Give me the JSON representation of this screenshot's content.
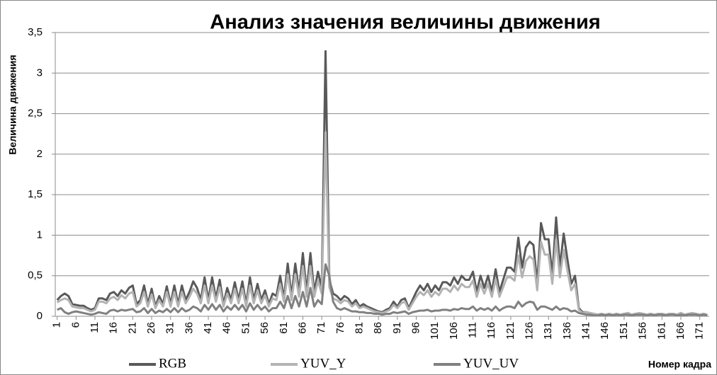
{
  "chart_data": {
    "type": "line",
    "title": "Анализ значения величины движения",
    "y_label": "Величина движения",
    "x_label": "Номер кадра",
    "categories": [
      1,
      null,
      null,
      null,
      null,
      6,
      null,
      null,
      null,
      null,
      11,
      null,
      null,
      null,
      null,
      16,
      null,
      null,
      null,
      null,
      21,
      null,
      null,
      null,
      null,
      26,
      null,
      null,
      null,
      null,
      31,
      null,
      null,
      null,
      null,
      36,
      null,
      null,
      null,
      null,
      41,
      null,
      null,
      null,
      null,
      46,
      null,
      null,
      null,
      null,
      51,
      null,
      null,
      null,
      null,
      56,
      null,
      null,
      null,
      null,
      61,
      null,
      null,
      null,
      null,
      66,
      null,
      null,
      null,
      null,
      71,
      null,
      null,
      null,
      null,
      76,
      null,
      null,
      null,
      null,
      81,
      null,
      null,
      null,
      null,
      86,
      null,
      null,
      null,
      null,
      91,
      null,
      null,
      null,
      null,
      96,
      null,
      null,
      null,
      null,
      101,
      null,
      null,
      null,
      null,
      106,
      null,
      null,
      null,
      null,
      111,
      null,
      null,
      null,
      null,
      116,
      null,
      null,
      null,
      null,
      121,
      null,
      null,
      null,
      null,
      126,
      null,
      null,
      null,
      null,
      131,
      null,
      null,
      null,
      null,
      136,
      null,
      null,
      null,
      null,
      141,
      null,
      null,
      null,
      null,
      146,
      null,
      null,
      null,
      null,
      151,
      null,
      null,
      null,
      null,
      156,
      null,
      null,
      null,
      null,
      161,
      null,
      null,
      null,
      null,
      166,
      null,
      null,
      null,
      null,
      171,
      null,
      null
    ],
    "series": [
      {
        "name": "RGB",
        "color": "#595959",
        "values": [
          0.2,
          0.25,
          0.28,
          0.25,
          0.15,
          0.14,
          0.13,
          0.13,
          0.1,
          0.08,
          0.1,
          0.22,
          0.22,
          0.2,
          0.28,
          0.3,
          0.25,
          0.32,
          0.28,
          0.35,
          0.38,
          0.15,
          0.2,
          0.38,
          0.15,
          0.34,
          0.12,
          0.25,
          0.15,
          0.37,
          0.15,
          0.38,
          0.15,
          0.38,
          0.2,
          0.3,
          0.43,
          0.35,
          0.2,
          0.48,
          0.2,
          0.48,
          0.22,
          0.45,
          0.15,
          0.35,
          0.2,
          0.42,
          0.2,
          0.43,
          0.15,
          0.48,
          0.2,
          0.4,
          0.2,
          0.32,
          0.15,
          0.28,
          0.25,
          0.5,
          0.22,
          0.65,
          0.25,
          0.65,
          0.3,
          0.78,
          0.3,
          0.78,
          0.3,
          0.55,
          0.35,
          3.27,
          0.45,
          0.28,
          0.25,
          0.2,
          0.25,
          0.22,
          0.15,
          0.2,
          0.12,
          0.15,
          0.12,
          0.1,
          0.08,
          0.06,
          0.05,
          0.08,
          0.1,
          0.18,
          0.12,
          0.2,
          0.22,
          0.1,
          0.2,
          0.3,
          0.38,
          0.32,
          0.4,
          0.3,
          0.38,
          0.32,
          0.42,
          0.42,
          0.38,
          0.48,
          0.4,
          0.5,
          0.45,
          0.45,
          0.55,
          0.3,
          0.5,
          0.35,
          0.5,
          0.3,
          0.58,
          0.3,
          0.45,
          0.6,
          0.6,
          0.55,
          0.97,
          0.6,
          0.85,
          0.92,
          0.88,
          0.4,
          1.15,
          0.95,
          0.95,
          0.5,
          1.22,
          0.6,
          1.02,
          0.7,
          0.4,
          0.5,
          0.1,
          0.05,
          0.05,
          0.04,
          0.03,
          0.02,
          0.03,
          0.02,
          0.03,
          0.02,
          0.03,
          0.02,
          0.03,
          0.04,
          0.02,
          0.03,
          0.04,
          0.03,
          0.02,
          0.03,
          0.02,
          0.03,
          0.03,
          0.02,
          0.03,
          0.03,
          0.02,
          0.04,
          0.02,
          0.03,
          0.04,
          0.03,
          0.02,
          0.03,
          0.02
        ]
      },
      {
        "name": "YUV_Y",
        "color": "#b3b3b3",
        "values": [
          0.17,
          0.2,
          0.22,
          0.2,
          0.12,
          0.11,
          0.1,
          0.1,
          0.08,
          0.06,
          0.08,
          0.18,
          0.18,
          0.16,
          0.22,
          0.24,
          0.2,
          0.26,
          0.22,
          0.28,
          0.3,
          0.12,
          0.16,
          0.3,
          0.12,
          0.27,
          0.1,
          0.2,
          0.12,
          0.3,
          0.12,
          0.3,
          0.12,
          0.3,
          0.16,
          0.24,
          0.34,
          0.28,
          0.16,
          0.38,
          0.16,
          0.38,
          0.18,
          0.36,
          0.12,
          0.28,
          0.16,
          0.34,
          0.16,
          0.34,
          0.12,
          0.38,
          0.16,
          0.32,
          0.16,
          0.26,
          0.12,
          0.22,
          0.2,
          0.4,
          0.18,
          0.52,
          0.2,
          0.52,
          0.24,
          0.62,
          0.24,
          0.62,
          0.24,
          0.44,
          0.28,
          2.27,
          0.36,
          0.22,
          0.2,
          0.16,
          0.2,
          0.18,
          0.12,
          0.16,
          0.1,
          0.12,
          0.1,
          0.08,
          0.06,
          0.05,
          0.04,
          0.06,
          0.08,
          0.14,
          0.1,
          0.16,
          0.18,
          0.08,
          0.16,
          0.24,
          0.3,
          0.26,
          0.32,
          0.24,
          0.3,
          0.26,
          0.34,
          0.34,
          0.3,
          0.38,
          0.32,
          0.4,
          0.36,
          0.36,
          0.44,
          0.24,
          0.4,
          0.28,
          0.4,
          0.24,
          0.46,
          0.24,
          0.36,
          0.48,
          0.48,
          0.44,
          0.75,
          0.48,
          0.68,
          0.74,
          0.7,
          0.32,
          0.92,
          0.76,
          0.76,
          0.4,
          0.95,
          0.48,
          0.82,
          0.56,
          0.32,
          0.4,
          0.08,
          0.04,
          0.05,
          0.04,
          0.03,
          0.02,
          0.03,
          0.02,
          0.03,
          0.02,
          0.03,
          0.02,
          0.03,
          0.04,
          0.02,
          0.03,
          0.04,
          0.03,
          0.02,
          0.03,
          0.02,
          0.03,
          0.03,
          0.02,
          0.03,
          0.03,
          0.02,
          0.04,
          0.02,
          0.03,
          0.04,
          0.03,
          0.02,
          0.03,
          0.02
        ]
      },
      {
        "name": "YUV_UV",
        "color": "#808080",
        "values": [
          0.08,
          0.1,
          0.05,
          0.03,
          0.05,
          0.06,
          0.05,
          0.04,
          0.03,
          0.02,
          0.03,
          0.05,
          0.04,
          0.03,
          0.07,
          0.08,
          0.06,
          0.08,
          0.07,
          0.08,
          0.09,
          0.05,
          0.06,
          0.1,
          0.04,
          0.09,
          0.04,
          0.07,
          0.05,
          0.09,
          0.05,
          0.1,
          0.05,
          0.1,
          0.06,
          0.08,
          0.12,
          0.1,
          0.06,
          0.14,
          0.08,
          0.15,
          0.08,
          0.14,
          0.06,
          0.12,
          0.08,
          0.14,
          0.08,
          0.14,
          0.06,
          0.16,
          0.08,
          0.14,
          0.08,
          0.12,
          0.06,
          0.1,
          0.1,
          0.18,
          0.1,
          0.25,
          0.1,
          0.25,
          0.12,
          0.3,
          0.12,
          0.35,
          0.12,
          0.2,
          0.15,
          0.64,
          0.5,
          0.18,
          0.1,
          0.08,
          0.1,
          0.08,
          0.06,
          0.06,
          0.05,
          0.05,
          0.04,
          0.04,
          0.03,
          0.03,
          0.02,
          0.03,
          0.03,
          0.05,
          0.04,
          0.05,
          0.06,
          0.03,
          0.05,
          0.06,
          0.07,
          0.07,
          0.08,
          0.06,
          0.07,
          0.07,
          0.08,
          0.08,
          0.07,
          0.09,
          0.08,
          0.1,
          0.09,
          0.09,
          0.12,
          0.07,
          0.1,
          0.08,
          0.1,
          0.07,
          0.12,
          0.07,
          0.1,
          0.12,
          0.12,
          0.1,
          0.18,
          0.12,
          0.16,
          0.18,
          0.17,
          0.08,
          0.12,
          0.12,
          0.1,
          0.08,
          0.12,
          0.08,
          0.1,
          0.09,
          0.06,
          0.07,
          0.04,
          0.03,
          0.02,
          0.02,
          0.01,
          0.01,
          0.02,
          0.01,
          0.02,
          0.01,
          0.02,
          0.01,
          0.02,
          0.02,
          0.01,
          0.02,
          0.02,
          0.02,
          0.01,
          0.02,
          0.01,
          0.02,
          0.02,
          0.01,
          0.02,
          0.02,
          0.01,
          0.02,
          0.01,
          0.02,
          0.02,
          0.02,
          0.01,
          0.02,
          0.01
        ]
      }
    ],
    "ylim": [
      0,
      3.5
    ],
    "yticks": [
      0,
      {
        "value": 0.5,
        "label": "0,5"
      },
      1,
      {
        "value": 1.5,
        "label": "1,5"
      },
      2,
      {
        "value": 2.5,
        "label": "2,5"
      },
      3,
      {
        "value": 3.5,
        "label": "3,5"
      }
    ],
    "grid": true,
    "legend": "bottom"
  }
}
